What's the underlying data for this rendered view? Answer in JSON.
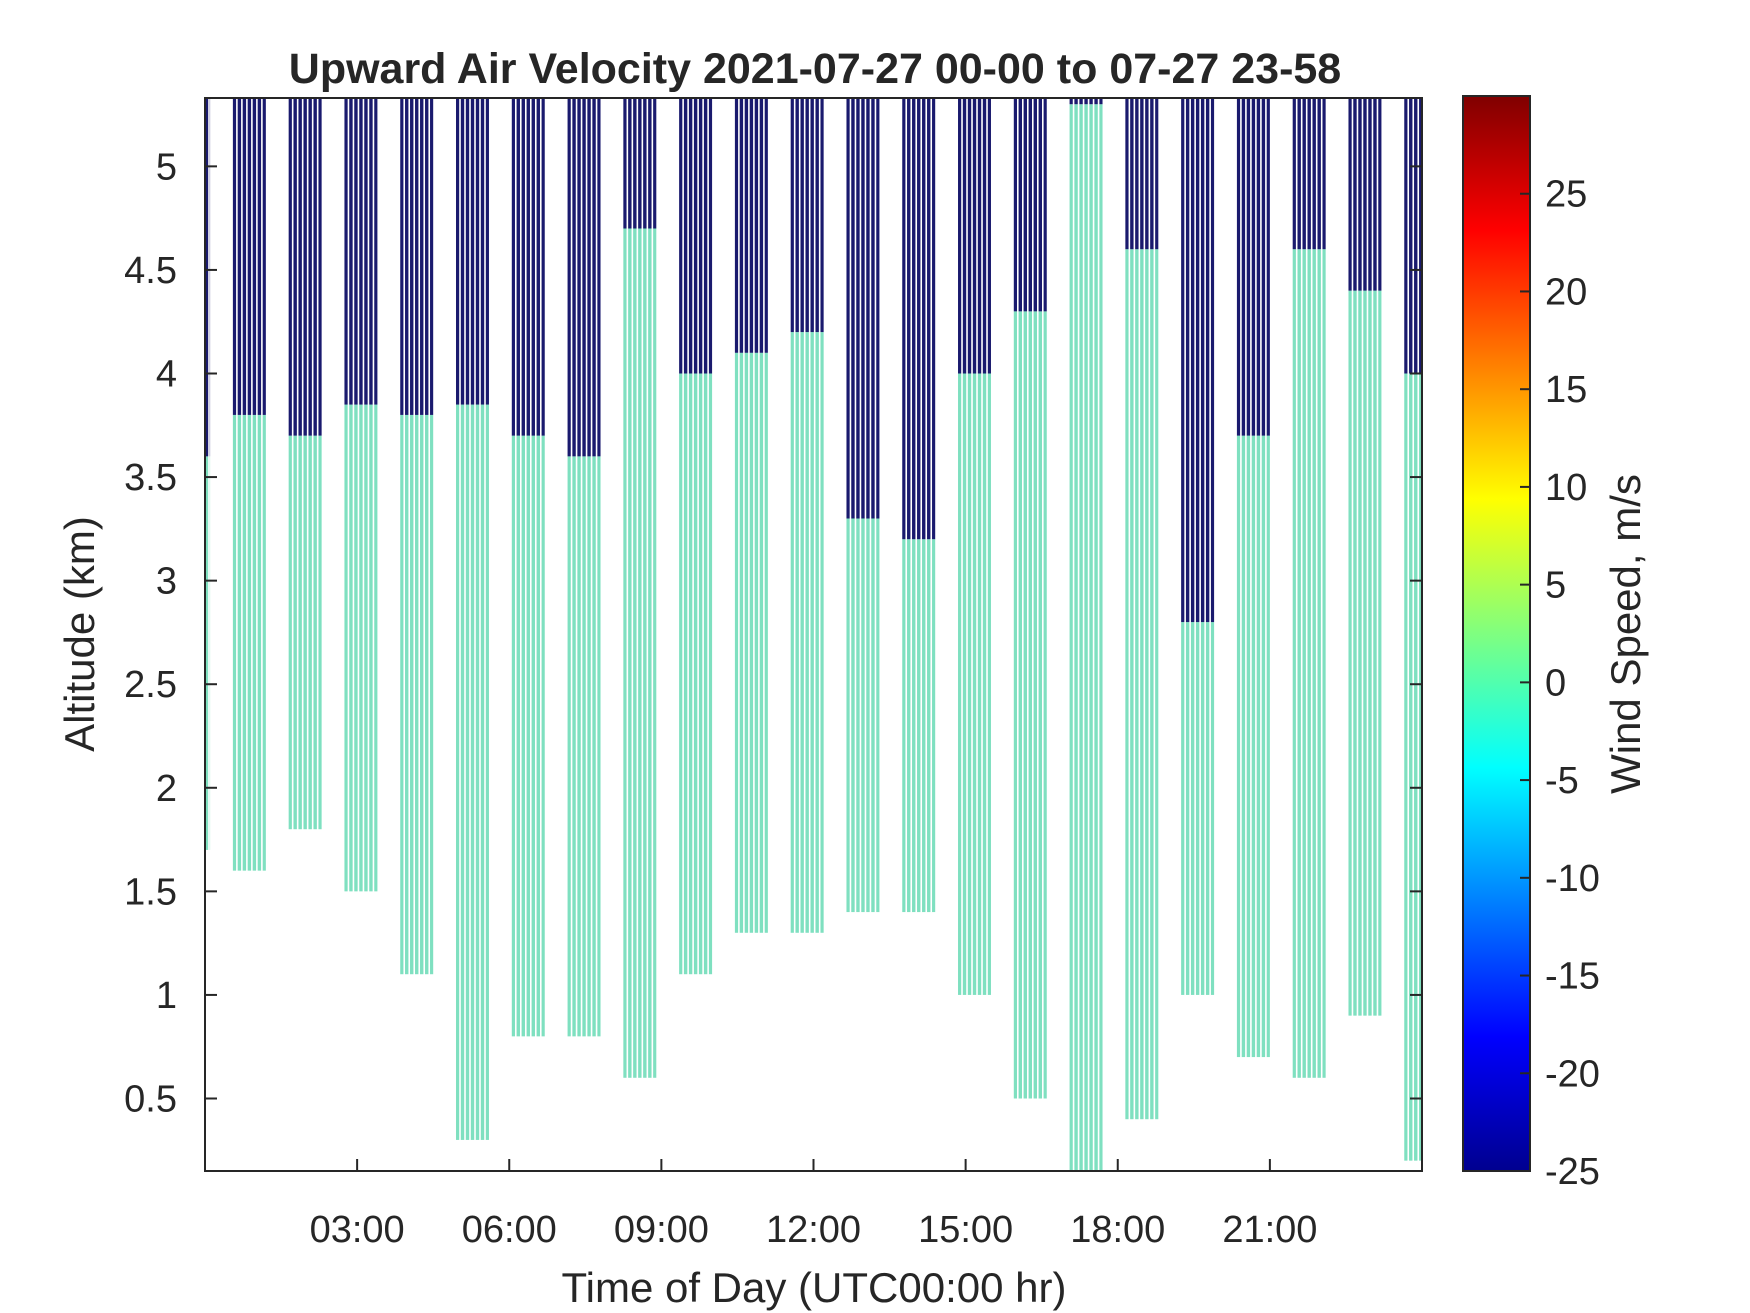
{
  "chart_data": {
    "type": "heatmap",
    "title": "Upward Air Velocity 2021-07-27 00-00 to 07-27 23-58",
    "xlabel": "Time of Day (UTC00:00 hr)",
    "ylabel": "Altitude (km)",
    "colorbar_label": "Wind Speed, m/s",
    "colormap": "jet",
    "x_unit": "hours",
    "xlim": [
      0,
      24
    ],
    "ylim": [
      0.15,
      5.33
    ],
    "clim": [
      -25,
      30
    ],
    "x_ticks": [
      {
        "value": 3,
        "label": "03:00"
      },
      {
        "value": 6,
        "label": "06:00"
      },
      {
        "value": 9,
        "label": "09:00"
      },
      {
        "value": 12,
        "label": "12:00"
      },
      {
        "value": 15,
        "label": "15:00"
      },
      {
        "value": 18,
        "label": "18:00"
      },
      {
        "value": 21,
        "label": "21:00"
      }
    ],
    "y_ticks": [
      {
        "value": 0.5,
        "label": "0.5"
      },
      {
        "value": 1,
        "label": "1"
      },
      {
        "value": 1.5,
        "label": "1.5"
      },
      {
        "value": 2,
        "label": "2"
      },
      {
        "value": 2.5,
        "label": "2.5"
      },
      {
        "value": 3,
        "label": "3"
      },
      {
        "value": 3.5,
        "label": "3.5"
      },
      {
        "value": 4,
        "label": "4"
      },
      {
        "value": 4.5,
        "label": "4.5"
      },
      {
        "value": 5,
        "label": "5"
      }
    ],
    "colorbar_ticks": [
      {
        "value": -25,
        "label": "-25"
      },
      {
        "value": -20,
        "label": "-20"
      },
      {
        "value": -15,
        "label": "-15"
      },
      {
        "value": -10,
        "label": "-10"
      },
      {
        "value": -5,
        "label": "-5"
      },
      {
        "value": 0,
        "label": "0"
      },
      {
        "value": 5,
        "label": "5"
      },
      {
        "value": 10,
        "label": "10"
      },
      {
        "value": 15,
        "label": "15"
      },
      {
        "value": 20,
        "label": "20"
      },
      {
        "value": 25,
        "label": "25"
      }
    ],
    "colors": {
      "low_value": "#1a1a6e",
      "near_zero": "#7fe0c0",
      "axis": "#262626"
    },
    "profiles": [
      {
        "start": 0.0,
        "end": 0.1,
        "bottom": 1.7,
        "dark_bottom": 3.6
      },
      {
        "start": 0.55,
        "end": 1.2,
        "bottom": 1.6,
        "dark_bottom": 3.8
      },
      {
        "start": 1.65,
        "end": 2.3,
        "bottom": 1.8,
        "dark_bottom": 3.7
      },
      {
        "start": 2.75,
        "end": 3.4,
        "bottom": 1.5,
        "dark_bottom": 3.85
      },
      {
        "start": 3.85,
        "end": 4.5,
        "bottom": 1.1,
        "dark_bottom": 3.8
      },
      {
        "start": 4.95,
        "end": 5.6,
        "bottom": 0.3,
        "dark_bottom": 3.85
      },
      {
        "start": 6.05,
        "end": 6.7,
        "bottom": 0.8,
        "dark_bottom": 3.7
      },
      {
        "start": 7.15,
        "end": 7.8,
        "bottom": 0.8,
        "dark_bottom": 3.6
      },
      {
        "start": 8.25,
        "end": 8.9,
        "bottom": 0.6,
        "dark_bottom": 4.7
      },
      {
        "start": 9.35,
        "end": 10.0,
        "bottom": 1.1,
        "dark_bottom": 4.0
      },
      {
        "start": 10.45,
        "end": 11.1,
        "bottom": 1.3,
        "dark_bottom": 4.1
      },
      {
        "start": 11.55,
        "end": 12.2,
        "bottom": 1.3,
        "dark_bottom": 4.2
      },
      {
        "start": 12.65,
        "end": 13.3,
        "bottom": 1.4,
        "dark_bottom": 3.3
      },
      {
        "start": 13.75,
        "end": 14.4,
        "bottom": 1.4,
        "dark_bottom": 3.2
      },
      {
        "start": 14.85,
        "end": 15.5,
        "bottom": 1.0,
        "dark_bottom": 4.0
      },
      {
        "start": 15.95,
        "end": 16.6,
        "bottom": 0.5,
        "dark_bottom": 4.3
      },
      {
        "start": 17.05,
        "end": 17.7,
        "bottom": 0.15,
        "dark_bottom": 5.3
      },
      {
        "start": 18.15,
        "end": 18.8,
        "bottom": 0.4,
        "dark_bottom": 4.6
      },
      {
        "start": 19.25,
        "end": 19.9,
        "bottom": 1.0,
        "dark_bottom": 2.8
      },
      {
        "start": 20.35,
        "end": 21.0,
        "bottom": 0.7,
        "dark_bottom": 3.7
      },
      {
        "start": 21.45,
        "end": 22.1,
        "bottom": 0.6,
        "dark_bottom": 4.6
      },
      {
        "start": 22.55,
        "end": 23.2,
        "bottom": 0.9,
        "dark_bottom": 4.4
      },
      {
        "start": 23.65,
        "end": 24.0,
        "bottom": 0.2,
        "dark_bottom": 4.0
      }
    ]
  }
}
